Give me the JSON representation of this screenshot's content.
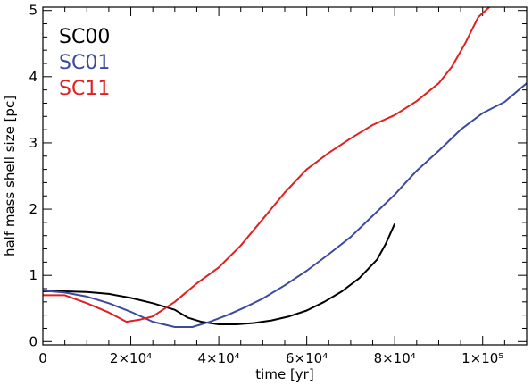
{
  "chart_data": {
    "type": "line",
    "title": "",
    "xlabel": "time [yr]",
    "ylabel": "half mass shell size [pc]",
    "xlim": [
      0,
      110000
    ],
    "ylim": [
      -0.05,
      5.05
    ],
    "grid": false,
    "legend_placement": "top-left",
    "x_major_ticks": [
      0,
      20000,
      40000,
      60000,
      80000,
      100000
    ],
    "x_tick_labels": [
      "0",
      "2×10⁴",
      "4×10⁴",
      "6×10⁴",
      "8×10⁴",
      "1×10⁵"
    ],
    "y_major_ticks": [
      0,
      1,
      2,
      3,
      4,
      5
    ],
    "y_tick_labels": [
      "0",
      "1",
      "2",
      "3",
      "4",
      "5"
    ],
    "series": [
      {
        "name": "SC00",
        "color": "#000000",
        "x": [
          0,
          5000,
          10000,
          15000,
          20000,
          25000,
          30000,
          33000,
          36000,
          40000,
          44000,
          48000,
          52000,
          56000,
          60000,
          64000,
          68000,
          72000,
          76000,
          78000,
          80000
        ],
        "y": [
          0.76,
          0.76,
          0.75,
          0.72,
          0.66,
          0.58,
          0.48,
          0.36,
          0.3,
          0.26,
          0.26,
          0.28,
          0.32,
          0.38,
          0.47,
          0.6,
          0.76,
          0.96,
          1.24,
          1.48,
          1.78
        ]
      },
      {
        "name": "SC01",
        "color": "#3c4a9e",
        "x": [
          0,
          5000,
          10000,
          15000,
          20000,
          25000,
          30000,
          34000,
          38000,
          42000,
          46000,
          50000,
          55000,
          60000,
          65000,
          70000,
          75000,
          80000,
          85000,
          90000,
          95000,
          100000,
          105000,
          110000
        ],
        "y": [
          0.77,
          0.74,
          0.68,
          0.58,
          0.45,
          0.3,
          0.22,
          0.22,
          0.3,
          0.4,
          0.52,
          0.65,
          0.85,
          1.07,
          1.32,
          1.58,
          1.9,
          2.22,
          2.58,
          2.88,
          3.2,
          3.45,
          3.62,
          3.9
        ]
      },
      {
        "name": "SC11",
        "color": "#e02020",
        "x": [
          0,
          5000,
          10000,
          15000,
          19000,
          22000,
          25000,
          30000,
          35000,
          40000,
          45000,
          50000,
          55000,
          60000,
          65000,
          70000,
          75000,
          80000,
          85000,
          90000,
          93000,
          96000,
          99000,
          102000
        ],
        "y": [
          0.7,
          0.7,
          0.58,
          0.44,
          0.3,
          0.33,
          0.38,
          0.6,
          0.88,
          1.12,
          1.45,
          1.85,
          2.25,
          2.6,
          2.85,
          3.07,
          3.27,
          3.42,
          3.63,
          3.9,
          4.15,
          4.5,
          4.9,
          5.08
        ]
      }
    ]
  }
}
